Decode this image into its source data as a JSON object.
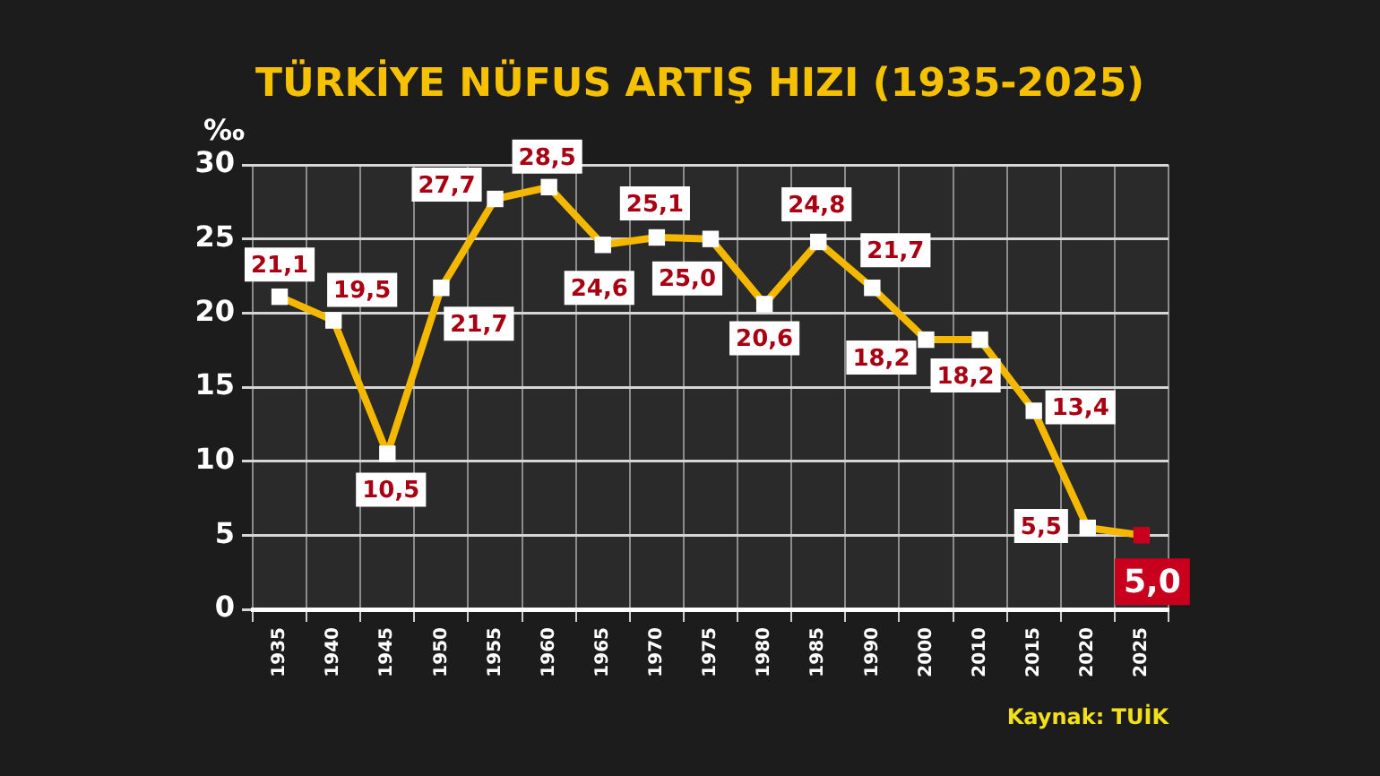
{
  "chart_data": {
    "type": "line",
    "title": "TÜRKİYE NÜFUS ARTIŞ HIZI (1935-2025)",
    "ylabel": "‰",
    "categories": [
      "1935",
      "1940",
      "1945",
      "1950",
      "1955",
      "1960",
      "1965",
      "1970",
      "1975",
      "1980",
      "1985",
      "1990",
      "2000",
      "2010",
      "2015",
      "2020",
      "2025"
    ],
    "series": [
      {
        "color": "#f5b800",
        "colors": [
          "#ffffff",
          "#ffffff",
          "#ffffff",
          "#ffffff",
          "#ffffff",
          "#ffffff",
          "#ffffff",
          "#ffffff",
          "#ffffff",
          "#ffffff",
          "#ffffff",
          "#ffffff",
          "#ffffff",
          "#ffffff",
          "#ffffff",
          "#ffffff",
          "#c8001e"
        ],
        "values": [
          21.1,
          19.5,
          10.5,
          21.7,
          27.7,
          28.5,
          24.6,
          25.1,
          25.0,
          20.6,
          24.8,
          21.7,
          18.2,
          18.2,
          13.4,
          5.5,
          5.0
        ],
        "value_labels": [
          "21,1",
          "19,5",
          "10,5",
          "21,7",
          "27,7",
          "28,5",
          "24,6",
          "25,1",
          "25,0",
          "20,6",
          "24,8",
          "21,7",
          "18,2",
          "18,2",
          "13,4",
          "5,5",
          "5,0"
        ]
      }
    ],
    "ylim": [
      0,
      30
    ],
    "yticks": [
      0,
      5,
      10,
      15,
      20,
      25,
      30
    ],
    "grid": true,
    "legend": false,
    "marker": "square",
    "line_style": "solid",
    "annotations": [
      "Kaynak: TUİK"
    ]
  }
}
